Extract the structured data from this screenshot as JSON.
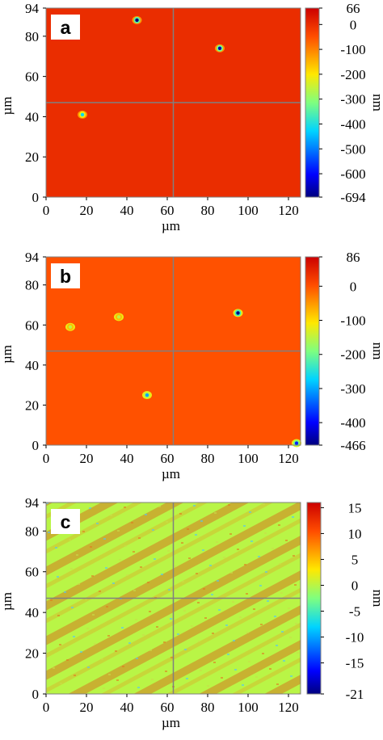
{
  "chart_data": [
    {
      "type": "heatmap",
      "panel_label": "a",
      "xlabel": "µm",
      "ylabel": "µm",
      "xlim": [
        0,
        126
      ],
      "ylim": [
        0,
        94
      ],
      "x_ticks": [
        "0",
        "20",
        "40",
        "60",
        "80",
        "100",
        "120"
      ],
      "y_ticks": [
        "0",
        "20",
        "40",
        "60",
        "80",
        "94"
      ],
      "colorbar": {
        "unit": "nm",
        "min": -694,
        "max": 66,
        "ticks": [
          "66",
          "0",
          "-100",
          "-200",
          "-300",
          "-400",
          "-500",
          "-600",
          "-694"
        ],
        "tick_values": [
          66,
          0,
          -100,
          -200,
          -300,
          -400,
          -500,
          -600,
          -694
        ]
      },
      "base_value": 0,
      "crosshair": {
        "x": 63,
        "y": 47
      },
      "features": [
        {
          "x": 45,
          "y": 88,
          "depth": -694
        },
        {
          "x": 86,
          "y": 74,
          "depth": -650
        },
        {
          "x": 18,
          "y": 41,
          "depth": -420
        }
      ]
    },
    {
      "type": "heatmap",
      "panel_label": "b",
      "xlabel": "µm",
      "ylabel": "µm",
      "xlim": [
        0,
        126
      ],
      "ylim": [
        0,
        94
      ],
      "x_ticks": [
        "0",
        "20",
        "40",
        "60",
        "80",
        "100",
        "120"
      ],
      "y_ticks": [
        "0",
        "20",
        "40",
        "60",
        "80",
        "94"
      ],
      "colorbar": {
        "unit": "nm",
        "min": -466,
        "max": 86,
        "ticks": [
          "86",
          "0",
          "-100",
          "-200",
          "-300",
          "-400",
          "-466"
        ],
        "tick_values": [
          86,
          0,
          -100,
          -200,
          -300,
          -400,
          -466
        ]
      },
      "base_value": 0,
      "crosshair": {
        "x": 63,
        "y": 47
      },
      "features": [
        {
          "x": 95,
          "y": 66,
          "depth": -466
        },
        {
          "x": 50,
          "y": 25,
          "depth": -300
        },
        {
          "x": 36,
          "y": 64,
          "depth": -150
        },
        {
          "x": 12,
          "y": 59,
          "depth": -150
        },
        {
          "x": 124,
          "y": 1,
          "depth": -380
        }
      ]
    },
    {
      "type": "heatmap",
      "panel_label": "c",
      "xlabel": "µm",
      "ylabel": "µm",
      "xlim": [
        0,
        126
      ],
      "ylim": [
        0,
        94
      ],
      "x_ticks": [
        "0",
        "20",
        "40",
        "60",
        "80",
        "100",
        "120"
      ],
      "y_ticks": [
        "0",
        "20",
        "40",
        "60",
        "80",
        "94"
      ],
      "colorbar": {
        "unit": "nm",
        "min": -21,
        "max": 16,
        "ticks": [
          "15",
          "10",
          "5",
          "0",
          "-5",
          "-10",
          "-15",
          "-21"
        ],
        "tick_values": [
          15,
          10,
          5,
          0,
          -5,
          -10,
          -15,
          -21
        ]
      },
      "base_value": 0,
      "crosshair": {
        "x": 63,
        "y": 47
      },
      "features": []
    }
  ]
}
